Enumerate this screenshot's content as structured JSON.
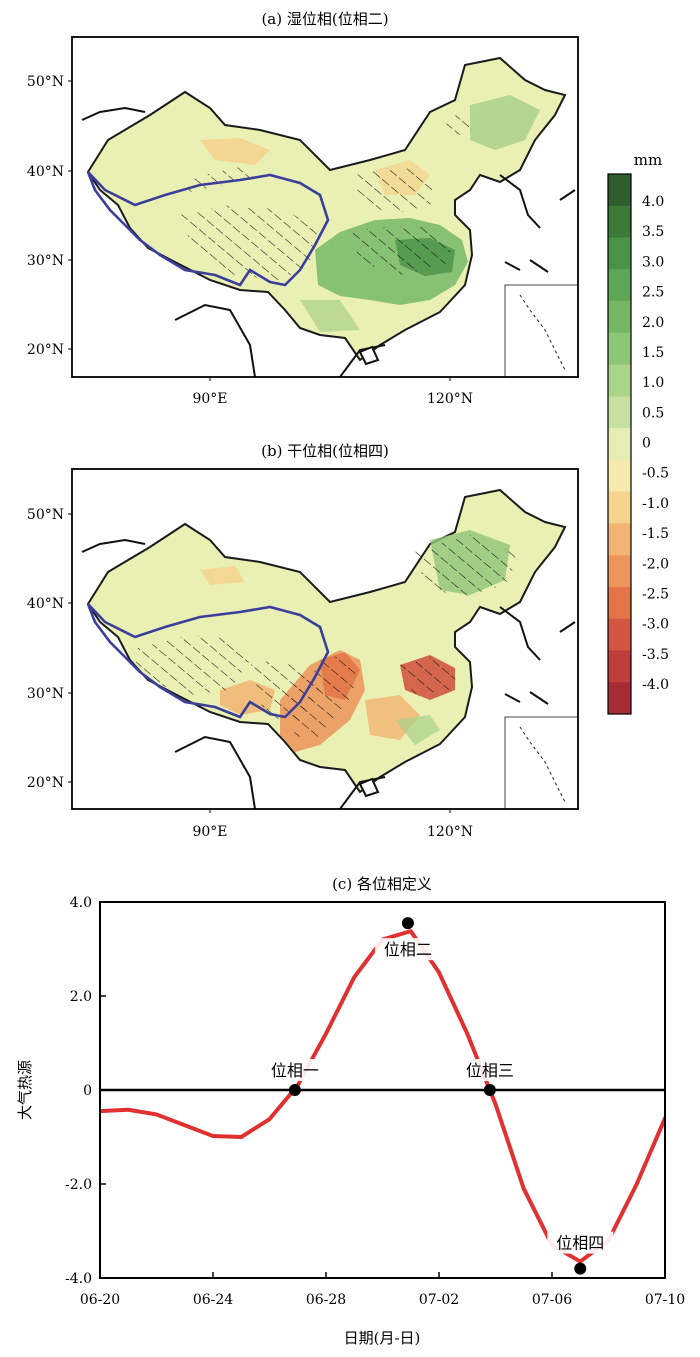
{
  "map_a": {
    "title": "(a) 湿位相(位相二)",
    "lat_ticks": [
      "50°N",
      "40°N",
      "30°N",
      "20°N"
    ],
    "lon_ticks": [
      "90°E",
      "120°N"
    ]
  },
  "map_b": {
    "title": "(b) 干位相(位相四)",
    "lat_ticks": [
      "50°N",
      "40°N",
      "30°N",
      "20°N"
    ],
    "lon_ticks": [
      "90°E",
      "120°N"
    ]
  },
  "colorbar": {
    "unit": "mm",
    "labels": [
      "4.0",
      "3.5",
      "3.0",
      "2.5",
      "2.0",
      "1.5",
      "1.0",
      "0.5",
      "0",
      "-0.5",
      "-1.0",
      "-1.5",
      "-2.0",
      "-2.5",
      "-3.0",
      "-3.5",
      "-4.0"
    ],
    "colors": [
      "#2f5e2e",
      "#3d7a3a",
      "#4c9247",
      "#5ea556",
      "#74b665",
      "#8ec678",
      "#abd48b",
      "#c7e0a0",
      "#e6edb4",
      "#f6e9ac",
      "#f6d28d",
      "#f2b472",
      "#ec9459",
      "#e27448",
      "#d25641",
      "#bd3e3a",
      "#a52c34"
    ]
  },
  "chart_data": {
    "type": "line",
    "title": "(c) 各位相定义",
    "xlabel": "日期(月-日)",
    "ylabel": "大气热源",
    "x_ticks": [
      "06-20",
      "06-24",
      "06-28",
      "07-02",
      "07-06",
      "07-10"
    ],
    "y_ticks": [
      "4.0",
      "2.0",
      "0",
      "-2.0",
      "-4.0"
    ],
    "xlim": [
      0,
      20
    ],
    "ylim": [
      -4,
      4
    ],
    "series": [
      {
        "color": "#e03030",
        "x": [
          0,
          1,
          2,
          3,
          4,
          5,
          6,
          7,
          8,
          9,
          10,
          11,
          12,
          13,
          14,
          15,
          16,
          17,
          18,
          19,
          20
        ],
        "y": [
          -0.45,
          -0.42,
          -0.52,
          -0.75,
          -0.98,
          -1.0,
          -0.62,
          0.1,
          1.2,
          2.4,
          3.2,
          3.38,
          2.5,
          1.2,
          -0.3,
          -2.1,
          -3.3,
          -3.65,
          -3.2,
          -2.0,
          -0.6
        ]
      }
    ],
    "phase_points": [
      {
        "x": 6.9,
        "y": 0,
        "label": "位相一"
      },
      {
        "x": 10.9,
        "y": 3.55,
        "label": "位相二"
      },
      {
        "x": 13.8,
        "y": 0,
        "label": "位相三"
      },
      {
        "x": 17.0,
        "y": -3.8,
        "label": "位相四"
      }
    ],
    "zero_line": true
  }
}
